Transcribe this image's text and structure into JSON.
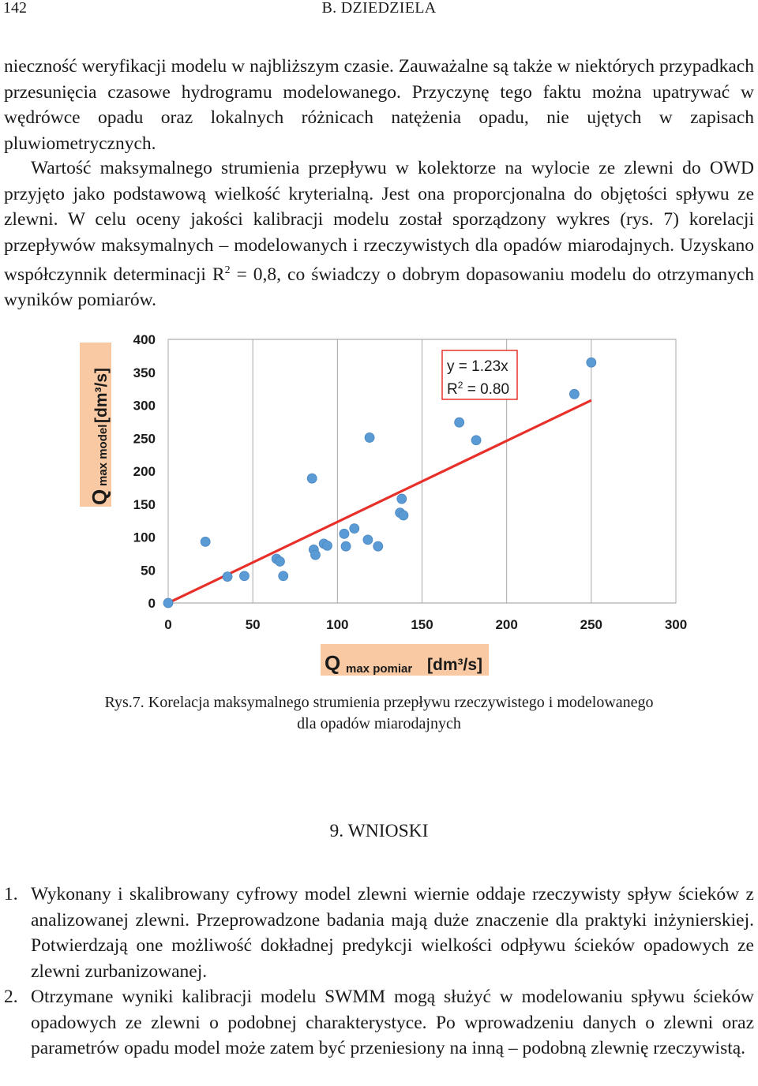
{
  "header": {
    "page_number": "142",
    "running_head": "B. DZIEDZIELA"
  },
  "body": {
    "p1": "nieczność weryfikacji modelu w najbliższym czasie. Zauważalne są także w niektórych przypadkach przesunięcia czasowe hydrogramu modelowanego. Przyczynę tego faktu można upatrywać w wędrówce opadu oraz lokalnych różnicach natężenia opadu, nie ujętych w zapisach pluwiometrycznych.",
    "p2_before_sup": "Wartość maksymalnego strumienia przepływu w kolektorze na wylocie ze zlewni do OWD przyjęto jako podstawową wielkość kryterialną. Jest ona proporcjonalna do objętości spływu ze zlewni. W celu oceny jakości kalibracji modelu został sporządzony wykres (rys. 7) korelacji przepływów maksymalnych – modelowanych i rzeczywistych dla opadów miarodajnych. Uzyskano współczynnik determinacji R",
    "p2_sup": "2",
    "p2_after_sup": " = 0,8, co świadczy o dobrym dopasowaniu modelu do otrzymanych wyników pomiarów."
  },
  "chart_data": {
    "type": "scatter",
    "ylabel_main": "Q",
    "ylabel_sub": "max model",
    "ylabel_unit": "[dm³/s]",
    "xlabel_main": "Q",
    "xlabel_sub": "max pomiar",
    "xlabel_unit": "[dm³/s]",
    "xlim": [
      0,
      300
    ],
    "ylim": [
      0,
      400
    ],
    "x_ticks": [
      "0",
      "50",
      "100",
      "150",
      "200",
      "250",
      "300"
    ],
    "y_ticks": [
      "0",
      "50",
      "100",
      "150",
      "200",
      "250",
      "300",
      "350",
      "400"
    ],
    "grid": "vertical",
    "annotation": {
      "line1": "y = 1.23x",
      "line2_prefix": "R",
      "line2_sup": "2",
      "line2_suffix": " = 0.80"
    },
    "trendline": {
      "slope": 1.23,
      "x_range": [
        0,
        250
      ],
      "color": "#e8302a"
    },
    "point_color": "#5b9bd5",
    "points": [
      [
        0,
        0
      ],
      [
        22,
        93
      ],
      [
        35,
        40
      ],
      [
        45,
        41
      ],
      [
        64,
        67
      ],
      [
        66,
        63
      ],
      [
        68,
        41
      ],
      [
        85,
        189
      ],
      [
        86,
        81
      ],
      [
        87,
        73
      ],
      [
        92,
        90
      ],
      [
        94,
        87
      ],
      [
        104,
        105
      ],
      [
        105,
        86
      ],
      [
        110,
        113
      ],
      [
        118,
        96
      ],
      [
        119,
        251
      ],
      [
        124,
        86
      ],
      [
        137,
        137
      ],
      [
        138,
        158
      ],
      [
        139,
        133
      ],
      [
        172,
        274
      ],
      [
        182,
        247
      ],
      [
        240,
        317
      ],
      [
        250,
        365
      ]
    ]
  },
  "caption": {
    "line1": "Rys.7. Korelacja maksymalnego strumienia przepływu rzeczywistego i modelowanego",
    "line2": "dla opadów miarodajnych"
  },
  "section": {
    "title": "9. WNIOSKI"
  },
  "conclusions": [
    {
      "num": "1.",
      "text": "Wykonany i skalibrowany cyfrowy model zlewni wiernie oddaje rzeczywisty spływ ścieków z analizowanej zlewni. Przeprowadzone badania mają duże znaczenie dla praktyki inżynierskiej. Potwierdzają one możliwość dokładnej predykcji wielkości odpływu ścieków opadowych ze zlewni zurbanizowanej."
    },
    {
      "num": "2.",
      "text": "Otrzymane wyniki kalibracji modelu SWMM mogą służyć w modelowaniu spływu ścieków opadowych ze zlewni o podobnej charakterystyce. Po wprowadzeniu danych o zlewni oraz parametrów opadu model może zatem być przeniesiony na inną – podobną zlewnię rzeczywistą."
    }
  ]
}
